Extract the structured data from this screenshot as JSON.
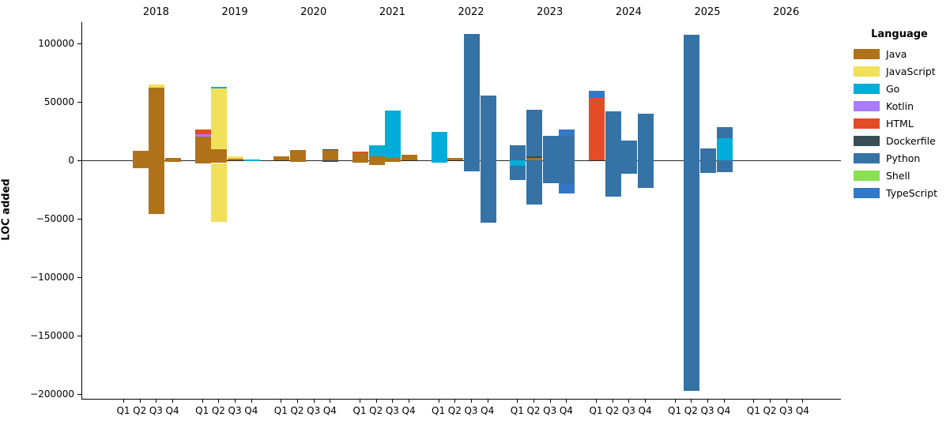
{
  "figure": {
    "ylabel": "LOC added",
    "background": "#ffffff",
    "axis_color": "#000000",
    "zero_line_color": "#262626"
  },
  "legend": {
    "title": "Language",
    "items": [
      {
        "label": "Java",
        "color": "#b07219"
      },
      {
        "label": "JavaScript",
        "color": "#f1e05a"
      },
      {
        "label": "Go",
        "color": "#00ADD8"
      },
      {
        "label": "Kotlin",
        "color": "#A97BFF"
      },
      {
        "label": "HTML",
        "color": "#e34c26"
      },
      {
        "label": "Dockerfile",
        "color": "#384d54"
      },
      {
        "label": "Python",
        "color": "#3572A5"
      },
      {
        "label": "Shell",
        "color": "#89e051"
      },
      {
        "label": "TypeScript",
        "color": "#3178c6"
      }
    ]
  },
  "chart_data": {
    "type": "bar",
    "stacked": true,
    "orientation": "vertical",
    "title": "",
    "xlabel": "",
    "ylabel": "LOC added",
    "ylim": [
      -204000,
      118000
    ],
    "grid": false,
    "legend_position": "right-outside",
    "yticks": [
      {
        "value": 100000,
        "label": "100000"
      },
      {
        "value": 50000,
        "label": "50000"
      },
      {
        "value": 0,
        "label": "0"
      },
      {
        "value": -50000,
        "label": "−50000"
      },
      {
        "value": -100000,
        "label": "−100000"
      },
      {
        "value": -150000,
        "label": "−150000"
      },
      {
        "value": -200000,
        "label": "−200000"
      }
    ],
    "years": [
      "2018",
      "2019",
      "2020",
      "2021",
      "2022",
      "2023",
      "2024",
      "2025",
      "2026"
    ],
    "quarter_labels": [
      "Q1",
      "Q2",
      "Q3",
      "Q4"
    ],
    "stack_order": [
      "Java",
      "JavaScript",
      "Go",
      "Kotlin",
      "HTML",
      "Dockerfile",
      "Python",
      "Shell",
      "TypeScript"
    ],
    "quarters": [
      {
        "year": "2018",
        "quarter": "Q1",
        "positive": {},
        "negative": {}
      },
      {
        "year": "2018",
        "quarter": "Q2",
        "positive": {
          "Java": 8000
        },
        "negative": {
          "Java": -7000
        }
      },
      {
        "year": "2018",
        "quarter": "Q3",
        "positive": {
          "Java": 62000,
          "JavaScript": 3000
        },
        "negative": {
          "Java": -46000
        }
      },
      {
        "year": "2018",
        "quarter": "Q4",
        "positive": {
          "Java": 2000
        },
        "negative": {
          "Java": -1500
        }
      },
      {
        "year": "2019",
        "quarter": "Q1",
        "positive": {
          "Java": 20000,
          "Kotlin": 2000,
          "HTML": 4000
        },
        "negative": {
          "Java": -3000
        }
      },
      {
        "year": "2019",
        "quarter": "Q2",
        "positive": {
          "Java": 9500,
          "JavaScript": 51500,
          "Go": 1500
        },
        "negative": {
          "Java": -2500,
          "JavaScript": -50500
        }
      },
      {
        "year": "2019",
        "quarter": "Q3",
        "positive": {
          "Java": 1000,
          "JavaScript": 2000
        },
        "negative": {}
      },
      {
        "year": "2019",
        "quarter": "Q4",
        "positive": {
          "Go": 500
        },
        "negative": {
          "Go": -500
        }
      },
      {
        "year": "2020",
        "quarter": "Q1",
        "positive": {
          "Java": 3000
        },
        "negative": {}
      },
      {
        "year": "2020",
        "quarter": "Q2",
        "positive": {
          "Java": 8500
        },
        "negative": {
          "Java": -1500
        }
      },
      {
        "year": "2020",
        "quarter": "Q3",
        "positive": {},
        "negative": {}
      },
      {
        "year": "2020",
        "quarter": "Q4",
        "positive": {
          "Java": 8500,
          "Dockerfile": 800
        },
        "negative": {
          "Dockerfile": -1500
        }
      },
      {
        "year": "2021",
        "quarter": "Q1",
        "positive": {
          "Java": 6000,
          "HTML": 1600
        },
        "negative": {
          "Java": -2000
        }
      },
      {
        "year": "2021",
        "quarter": "Q2",
        "positive": {
          "Java": 3000,
          "Go": 10000
        },
        "negative": {
          "Java": -4500
        }
      },
      {
        "year": "2021",
        "quarter": "Q3",
        "positive": {
          "Java": 2000,
          "Go": 40500
        },
        "negative": {
          "Java": -1500
        }
      },
      {
        "year": "2021",
        "quarter": "Q4",
        "positive": {
          "Java": 4500
        },
        "negative": {}
      },
      {
        "year": "2022",
        "quarter": "Q1",
        "positive": {
          "Go": 24000
        },
        "negative": {
          "Go": -2500
        }
      },
      {
        "year": "2022",
        "quarter": "Q2",
        "positive": {
          "Java": 2000
        },
        "negative": {}
      },
      {
        "year": "2022",
        "quarter": "Q3",
        "positive": {
          "Python": 108000
        },
        "negative": {
          "Python": -9500
        }
      },
      {
        "year": "2022",
        "quarter": "Q4",
        "positive": {
          "Python": 55500
        },
        "negative": {
          "Python": -53500
        }
      },
      {
        "year": "2023",
        "quarter": "Q1",
        "positive": {
          "Python": 12500
        },
        "negative": {
          "Go": -5000,
          "Python": -12000
        }
      },
      {
        "year": "2023",
        "quarter": "Q2",
        "positive": {
          "Java": 2000,
          "Dockerfile": 1000,
          "Python": 40000
        },
        "negative": {
          "Python": -38000
        }
      },
      {
        "year": "2023",
        "quarter": "Q3",
        "positive": {
          "Python": 21000
        },
        "negative": {
          "Python": -20000
        }
      },
      {
        "year": "2023",
        "quarter": "Q4",
        "positive": {
          "Python": 21000,
          "TypeScript": 5000
        },
        "negative": {
          "Python": -20000,
          "TypeScript": -8500
        }
      },
      {
        "year": "2024",
        "quarter": "Q1",
        "positive": {
          "HTML": 53000,
          "TypeScript": 6500
        },
        "negative": {}
      },
      {
        "year": "2024",
        "quarter": "Q2",
        "positive": {
          "Python": 42000
        },
        "negative": {
          "Python": -31000
        }
      },
      {
        "year": "2024",
        "quarter": "Q3",
        "positive": {
          "Python": 17000
        },
        "negative": {
          "Python": -11500
        }
      },
      {
        "year": "2024",
        "quarter": "Q4",
        "positive": {
          "Python": 40000
        },
        "negative": {
          "Python": -23500
        }
      },
      {
        "year": "2025",
        "quarter": "Q1",
        "positive": {},
        "negative": {}
      },
      {
        "year": "2025",
        "quarter": "Q2",
        "positive": {
          "Python": 107000
        },
        "negative": {
          "Python": -197000
        }
      },
      {
        "year": "2025",
        "quarter": "Q3",
        "positive": {
          "Python": 10000
        },
        "negative": {
          "Python": -11000
        }
      },
      {
        "year": "2025",
        "quarter": "Q4",
        "positive": {
          "Go": 19000,
          "Python": 9500
        },
        "negative": {
          "Python": -10500
        }
      },
      {
        "year": "2026",
        "quarter": "Q1",
        "positive": {},
        "negative": {}
      },
      {
        "year": "2026",
        "quarter": "Q2",
        "positive": {},
        "negative": {}
      },
      {
        "year": "2026",
        "quarter": "Q3",
        "positive": {},
        "negative": {}
      },
      {
        "year": "2026",
        "quarter": "Q4",
        "positive": {},
        "negative": {}
      }
    ]
  }
}
